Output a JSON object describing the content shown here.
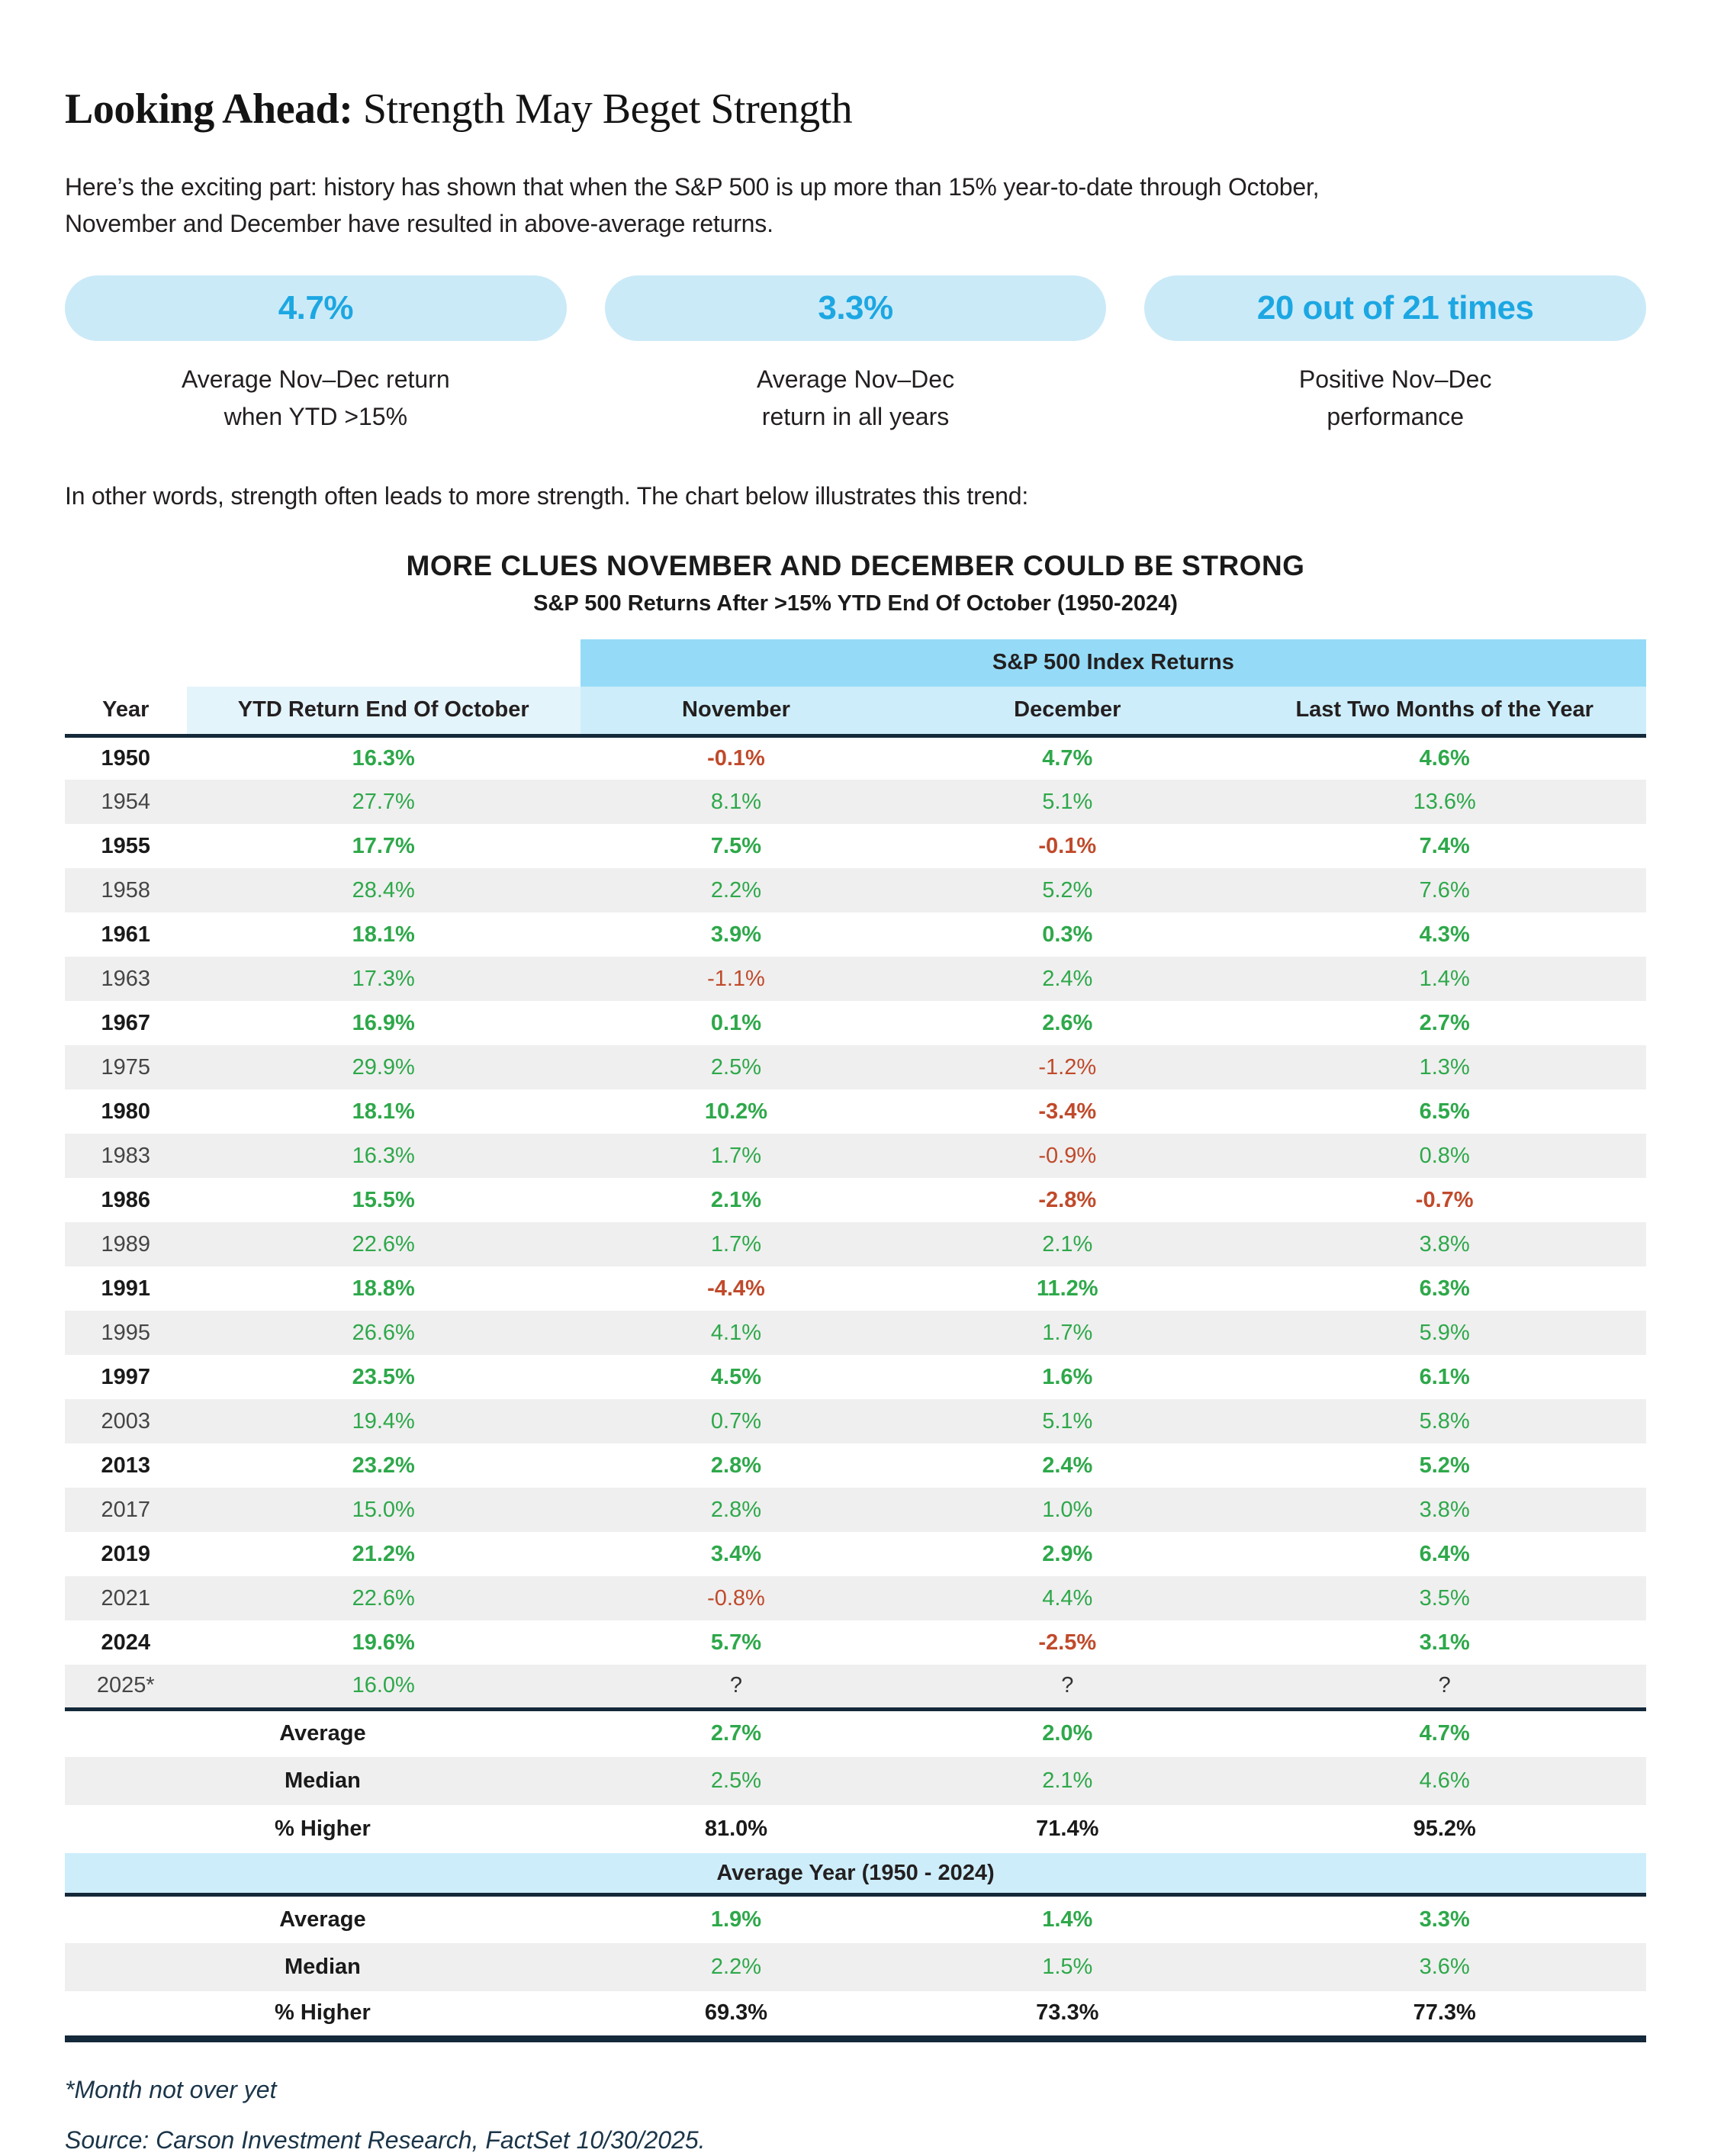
{
  "header": {
    "title_emphasis": "Looking Ahead:",
    "title_rest": " Strength May Beget Strength",
    "intro_line1": "Here’s the exciting part: history has shown that when the S&P 500 is up more than 15% year-to-date through October,",
    "intro_line2": "November and December have resulted in above-average returns.",
    "lead_in": "In other words, strength often leads to more strength. The chart below illustrates this trend:"
  },
  "stats": [
    {
      "value": "4.7%",
      "caption_line1": "Average Nov–Dec return",
      "caption_line2": "when YTD >15%"
    },
    {
      "value": "3.3%",
      "caption_line1": "Average Nov–Dec",
      "caption_line2": "return in all years"
    },
    {
      "value": "20 out of 21 times",
      "caption_line1": "Positive Nov–Dec",
      "caption_line2": "performance"
    }
  ],
  "chart": {
    "title": "MORE CLUES NOVEMBER AND DECEMBER COULD BE STRONG",
    "subtitle": "S&P 500 Returns After >15% YTD End Of October (1950-2024)"
  },
  "table": {
    "group_header": "S&P 500 Index Returns",
    "columns": [
      "Year",
      "YTD Return End Of October",
      "November",
      "December",
      "Last Two Months of the Year"
    ],
    "rows": [
      [
        "1950",
        "16.3%",
        "-0.1%",
        "4.7%",
        "4.6%"
      ],
      [
        "1954",
        "27.7%",
        "8.1%",
        "5.1%",
        "13.6%"
      ],
      [
        "1955",
        "17.7%",
        "7.5%",
        "-0.1%",
        "7.4%"
      ],
      [
        "1958",
        "28.4%",
        "2.2%",
        "5.2%",
        "7.6%"
      ],
      [
        "1961",
        "18.1%",
        "3.9%",
        "0.3%",
        "4.3%"
      ],
      [
        "1963",
        "17.3%",
        "-1.1%",
        "2.4%",
        "1.4%"
      ],
      [
        "1967",
        "16.9%",
        "0.1%",
        "2.6%",
        "2.7%"
      ],
      [
        "1975",
        "29.9%",
        "2.5%",
        "-1.2%",
        "1.3%"
      ],
      [
        "1980",
        "18.1%",
        "10.2%",
        "-3.4%",
        "6.5%"
      ],
      [
        "1983",
        "16.3%",
        "1.7%",
        "-0.9%",
        "0.8%"
      ],
      [
        "1986",
        "15.5%",
        "2.1%",
        "-2.8%",
        "-0.7%"
      ],
      [
        "1989",
        "22.6%",
        "1.7%",
        "2.1%",
        "3.8%"
      ],
      [
        "1991",
        "18.8%",
        "-4.4%",
        "11.2%",
        "6.3%"
      ],
      [
        "1995",
        "26.6%",
        "4.1%",
        "1.7%",
        "5.9%"
      ],
      [
        "1997",
        "23.5%",
        "4.5%",
        "1.6%",
        "6.1%"
      ],
      [
        "2003",
        "19.4%",
        "0.7%",
        "5.1%",
        "5.8%"
      ],
      [
        "2013",
        "23.2%",
        "2.8%",
        "2.4%",
        "5.2%"
      ],
      [
        "2017",
        "15.0%",
        "2.8%",
        "1.0%",
        "3.8%"
      ],
      [
        "2019",
        "21.2%",
        "3.4%",
        "2.9%",
        "6.4%"
      ],
      [
        "2021",
        "22.6%",
        "-0.8%",
        "4.4%",
        "3.5%"
      ],
      [
        "2024",
        "19.6%",
        "5.7%",
        "-2.5%",
        "3.1%"
      ],
      [
        "2025*",
        "16.0%",
        "?",
        "?",
        "?"
      ]
    ],
    "summary_subset": [
      [
        "Average",
        "2.7%",
        "2.0%",
        "4.7%"
      ],
      [
        "Median",
        "2.5%",
        "2.1%",
        "4.6%"
      ],
      [
        "% Higher",
        "81.0%",
        "71.4%",
        "95.2%"
      ]
    ],
    "band_label": "Average Year (1950 - 2024)",
    "summary_all": [
      [
        "Average",
        "1.9%",
        "1.4%",
        "3.3%"
      ],
      [
        "Median",
        "2.2%",
        "1.5%",
        "3.6%"
      ],
      [
        "% Higher",
        "69.3%",
        "73.3%",
        "77.3%"
      ]
    ]
  },
  "footnotes": {
    "note": "*Month not over yet",
    "source": "Source: Carson Investment Research, FactSet 10/30/2025."
  },
  "colors": {
    "accent": "#1CA7E2",
    "pill_bg": "#CBEAF8",
    "band_dark": "#95DBF7",
    "band_light": "#CDEDFA",
    "ytd_header_bg": "#E4F4FB",
    "row_alt_bg": "#EFEFEF",
    "green": "#2EA84A",
    "red": "#C04A2B",
    "navy": "#14293A",
    "text": "#231F20"
  }
}
